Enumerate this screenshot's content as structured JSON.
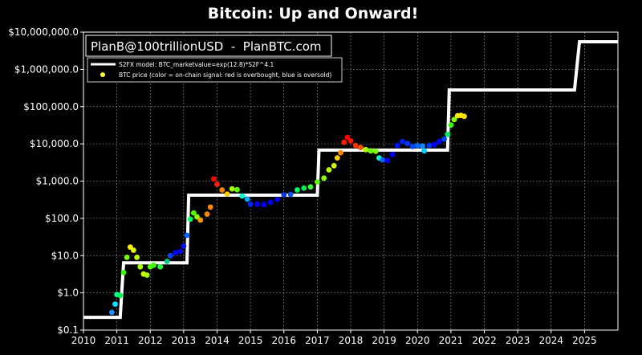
{
  "chart_data": {
    "type": "scatter",
    "title": "Bitcoin: Up and Onward!",
    "annotation": "PlanB@100trillionUSD  -  PlanBTC.com",
    "xlabel": "",
    "ylabel": "",
    "y_scale": "log",
    "xlim": [
      2010,
      2026
    ],
    "ylim": [
      0.1,
      10000000
    ],
    "x_ticks": [
      "2010",
      "2011",
      "2012",
      "2013",
      "2014",
      "2015",
      "2016",
      "2017",
      "2018",
      "2019",
      "2020",
      "2021",
      "2022",
      "2023",
      "2024",
      "2025"
    ],
    "y_ticks": [
      {
        "value": 0.1,
        "label": "$0.1"
      },
      {
        "value": 1,
        "label": "$1.0"
      },
      {
        "value": 10,
        "label": "$10.0"
      },
      {
        "value": 100,
        "label": "$100.0"
      },
      {
        "value": 1000,
        "label": "$1,000.0"
      },
      {
        "value": 10000,
        "label": "$10,000.0"
      },
      {
        "value": 100000,
        "label": "$100,000.0"
      },
      {
        "value": 1000000,
        "label": "$1,000,000.0"
      },
      {
        "value": 10000000,
        "label": "$10,000,000.0"
      }
    ],
    "grid": true,
    "legend_position": "top-left",
    "colors": {
      "background": "#000000",
      "model_line": "#ffffff",
      "text": "#ffffff",
      "grid": "#9a9a9a"
    },
    "series": [
      {
        "name": "S2FX model: BTC_marketvalue=exp(12.8)*S2F^4.1",
        "kind": "step-line",
        "x": [
          2010.0,
          2011.1,
          2011.2,
          2012.4,
          2013.1,
          2013.15,
          2016.5,
          2017.0,
          2017.05,
          2020.0,
          2020.9,
          2020.95,
          2024.7,
          2024.85,
          2026.0
        ],
        "y": [
          0.22,
          0.22,
          6.4,
          6.4,
          6.4,
          420,
          420,
          420,
          6800,
          6800,
          6800,
          280000,
          280000,
          5500000,
          5500000
        ]
      },
      {
        "name": "BTC price (color = on-chain signal: red is overbought, blue is oversold)",
        "kind": "scatter",
        "points": [
          {
            "x": 2010.85,
            "y": 0.3,
            "c": "#1e90ff"
          },
          {
            "x": 2010.95,
            "y": 0.5,
            "c": "#00e5ff"
          },
          {
            "x": 2011.0,
            "y": 0.9,
            "c": "#00ff88"
          },
          {
            "x": 2011.1,
            "y": 0.85,
            "c": "#00ff55"
          },
          {
            "x": 2011.2,
            "y": 3.5,
            "c": "#33ff00"
          },
          {
            "x": 2011.3,
            "y": 9,
            "c": "#77ff00"
          },
          {
            "x": 2011.4,
            "y": 17,
            "c": "#ffee00"
          },
          {
            "x": 2011.5,
            "y": 14,
            "c": "#ddff00"
          },
          {
            "x": 2011.6,
            "y": 9,
            "c": "#bbff00"
          },
          {
            "x": 2011.7,
            "y": 5,
            "c": "#aaff00"
          },
          {
            "x": 2011.8,
            "y": 3.2,
            "c": "#ccff00"
          },
          {
            "x": 2011.9,
            "y": 3,
            "c": "#aaff00"
          },
          {
            "x": 2012.0,
            "y": 5,
            "c": "#55ff00"
          },
          {
            "x": 2012.1,
            "y": 5.5,
            "c": "#33ff00"
          },
          {
            "x": 2012.3,
            "y": 5,
            "c": "#22ff44"
          },
          {
            "x": 2012.5,
            "y": 7,
            "c": "#00cc88"
          },
          {
            "x": 2012.6,
            "y": 10,
            "c": "#0044ff"
          },
          {
            "x": 2012.75,
            "y": 12,
            "c": "#0000ff"
          },
          {
            "x": 2012.9,
            "y": 13,
            "c": "#0000ff"
          },
          {
            "x": 2013.0,
            "y": 18,
            "c": "#0011ff"
          },
          {
            "x": 2013.1,
            "y": 35,
            "c": "#0066ff"
          },
          {
            "x": 2013.2,
            "y": 95,
            "c": "#00ff66"
          },
          {
            "x": 2013.3,
            "y": 140,
            "c": "#55ff00"
          },
          {
            "x": 2013.4,
            "y": 110,
            "c": "#88ff00"
          },
          {
            "x": 2013.5,
            "y": 90,
            "c": "#ff9900"
          },
          {
            "x": 2013.7,
            "y": 130,
            "c": "#ff8800"
          },
          {
            "x": 2013.8,
            "y": 200,
            "c": "#ff8800"
          },
          {
            "x": 2013.9,
            "y": 1150,
            "c": "#ff0000"
          },
          {
            "x": 2014.0,
            "y": 820,
            "c": "#ff2200"
          },
          {
            "x": 2014.15,
            "y": 580,
            "c": "#ff8800"
          },
          {
            "x": 2014.3,
            "y": 450,
            "c": "#ffcc00"
          },
          {
            "x": 2014.45,
            "y": 620,
            "c": "#aaff00"
          },
          {
            "x": 2014.6,
            "y": 590,
            "c": "#66ff00"
          },
          {
            "x": 2014.75,
            "y": 400,
            "c": "#00ffcc"
          },
          {
            "x": 2014.9,
            "y": 330,
            "c": "#00aaff"
          },
          {
            "x": 2015.0,
            "y": 240,
            "c": "#0022ff"
          },
          {
            "x": 2015.2,
            "y": 240,
            "c": "#0000ff"
          },
          {
            "x": 2015.4,
            "y": 235,
            "c": "#0000ff"
          },
          {
            "x": 2015.6,
            "y": 270,
            "c": "#0000ff"
          },
          {
            "x": 2015.8,
            "y": 320,
            "c": "#0000ff"
          },
          {
            "x": 2016.0,
            "y": 430,
            "c": "#0033ff"
          },
          {
            "x": 2016.2,
            "y": 440,
            "c": "#0055ff"
          },
          {
            "x": 2016.4,
            "y": 580,
            "c": "#00ff66"
          },
          {
            "x": 2016.6,
            "y": 650,
            "c": "#00ee55"
          },
          {
            "x": 2016.8,
            "y": 700,
            "c": "#33ff33"
          },
          {
            "x": 2017.0,
            "y": 950,
            "c": "#55ff00"
          },
          {
            "x": 2017.2,
            "y": 1200,
            "c": "#88ff00"
          },
          {
            "x": 2017.35,
            "y": 2000,
            "c": "#bbff00"
          },
          {
            "x": 2017.5,
            "y": 2600,
            "c": "#ccff00"
          },
          {
            "x": 2017.6,
            "y": 4200,
            "c": "#ffcc00"
          },
          {
            "x": 2017.7,
            "y": 5800,
            "c": "#ff8800"
          },
          {
            "x": 2017.8,
            "y": 11000,
            "c": "#ff2200"
          },
          {
            "x": 2017.9,
            "y": 15000,
            "c": "#ff0000"
          },
          {
            "x": 2018.0,
            "y": 12000,
            "c": "#ff1100"
          },
          {
            "x": 2018.15,
            "y": 9000,
            "c": "#ff3300"
          },
          {
            "x": 2018.3,
            "y": 8000,
            "c": "#ff5500"
          },
          {
            "x": 2018.45,
            "y": 7000,
            "c": "#aaff00"
          },
          {
            "x": 2018.6,
            "y": 6500,
            "c": "#66ff00"
          },
          {
            "x": 2018.75,
            "y": 6300,
            "c": "#88ff00"
          },
          {
            "x": 2018.85,
            "y": 4200,
            "c": "#00ffcc"
          },
          {
            "x": 2018.95,
            "y": 3700,
            "c": "#0066ff"
          },
          {
            "x": 2019.1,
            "y": 3600,
            "c": "#0000ff"
          },
          {
            "x": 2019.25,
            "y": 5200,
            "c": "#0000ff"
          },
          {
            "x": 2019.4,
            "y": 9000,
            "c": "#0011ff"
          },
          {
            "x": 2019.55,
            "y": 11500,
            "c": "#0022ff"
          },
          {
            "x": 2019.7,
            "y": 10200,
            "c": "#0033ff"
          },
          {
            "x": 2019.85,
            "y": 8500,
            "c": "#0044ff"
          },
          {
            "x": 2020.0,
            "y": 9000,
            "c": "#0066ff"
          },
          {
            "x": 2020.15,
            "y": 8700,
            "c": "#1188ff"
          },
          {
            "x": 2020.2,
            "y": 6500,
            "c": "#00ccff"
          },
          {
            "x": 2020.35,
            "y": 9000,
            "c": "#0033ff"
          },
          {
            "x": 2020.5,
            "y": 9500,
            "c": "#0000ff"
          },
          {
            "x": 2020.65,
            "y": 11500,
            "c": "#0000ff"
          },
          {
            "x": 2020.8,
            "y": 13500,
            "c": "#0044ff"
          },
          {
            "x": 2020.9,
            "y": 18000,
            "c": "#00ee66"
          },
          {
            "x": 2021.0,
            "y": 32000,
            "c": "#33ff00"
          },
          {
            "x": 2021.1,
            "y": 45000,
            "c": "#88ff00"
          },
          {
            "x": 2021.2,
            "y": 57000,
            "c": "#ffee00"
          },
          {
            "x": 2021.3,
            "y": 58000,
            "c": "#ffee00"
          },
          {
            "x": 2021.4,
            "y": 55000,
            "c": "#ffdd00"
          }
        ]
      }
    ]
  }
}
